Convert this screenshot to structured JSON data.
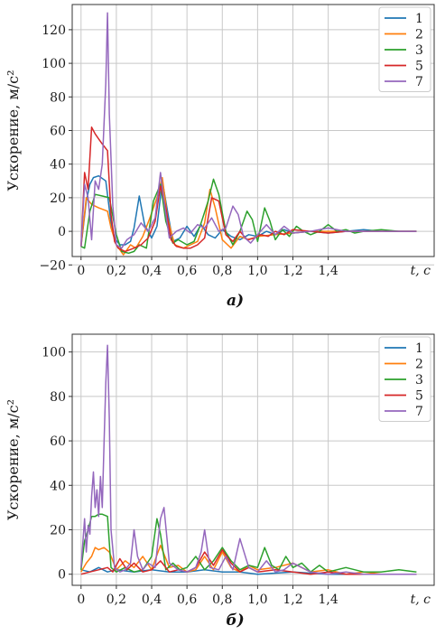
{
  "chart_data": [
    {
      "type": "line",
      "caption": "а)",
      "ylabel": "Ускорение, м/с²",
      "xlabel": "t, c",
      "xlim": [
        -0.05,
        2.0
      ],
      "ylim": [
        -15,
        135
      ],
      "xticks": [
        "0",
        "0,2",
        "0,4",
        "0,6",
        "0,8",
        "1,0",
        "1,2",
        "1,4"
      ],
      "yticks": [
        "−20",
        "0",
        "20",
        "40",
        "60",
        "80",
        "100",
        "120"
      ],
      "grid": true,
      "legend_position": "top-right",
      "series": [
        {
          "name": "1",
          "color": "#1f77b4",
          "x": [
            0,
            0.03,
            0.05,
            0.07,
            0.1,
            0.14,
            0.17,
            0.19,
            0.22,
            0.25,
            0.28,
            0.3,
            0.33,
            0.36,
            0.4,
            0.43,
            0.46,
            0.49,
            0.52,
            0.56,
            0.6,
            0.64,
            0.68,
            0.72,
            0.76,
            0.8,
            0.85,
            0.9,
            0.95,
            1.0,
            1.05,
            1.1,
            1.15,
            1.2,
            1.3,
            1.4,
            1.5,
            1.6,
            1.7,
            1.8,
            1.9
          ],
          "y": [
            -9,
            18,
            28,
            32,
            33,
            30,
            5,
            -4,
            -8,
            -8,
            -6,
            2,
            21,
            4,
            -4,
            3,
            30,
            12,
            -6,
            -4,
            3,
            -3,
            4,
            -2,
            -4,
            1,
            -3,
            -5,
            -2,
            -3,
            0,
            -2,
            1,
            -1,
            0,
            -1,
            0,
            1,
            0,
            0,
            0
          ]
        },
        {
          "name": "2",
          "color": "#ff7f0e",
          "x": [
            0,
            0.03,
            0.06,
            0.1,
            0.15,
            0.17,
            0.2,
            0.24,
            0.28,
            0.31,
            0.35,
            0.39,
            0.43,
            0.46,
            0.49,
            0.53,
            0.58,
            0.62,
            0.66,
            0.7,
            0.73,
            0.76,
            0.8,
            0.85,
            0.9,
            0.95,
            1.0,
            1.1,
            1.2,
            1.3,
            1.4,
            1.5,
            1.6,
            1.7,
            1.8,
            1.9
          ],
          "y": [
            -9,
            20,
            16,
            14,
            12,
            2,
            -8,
            -14,
            -8,
            -10,
            -3,
            8,
            20,
            32,
            8,
            -8,
            -10,
            -8,
            -6,
            5,
            25,
            14,
            -5,
            -10,
            -3,
            -5,
            -3,
            -2,
            -1,
            0,
            0,
            0,
            0,
            0,
            0,
            0
          ]
        },
        {
          "name": "3",
          "color": "#2ca02c",
          "x": [
            0,
            0.02,
            0.05,
            0.08,
            0.12,
            0.16,
            0.2,
            0.23,
            0.27,
            0.3,
            0.33,
            0.37,
            0.41,
            0.45,
            0.48,
            0.52,
            0.55,
            0.6,
            0.64,
            0.68,
            0.72,
            0.75,
            0.78,
            0.82,
            0.86,
            0.9,
            0.94,
            0.97,
            1.0,
            1.04,
            1.07,
            1.1,
            1.14,
            1.18,
            1.22,
            1.26,
            1.3,
            1.35,
            1.4,
            1.45,
            1.5,
            1.55,
            1.6,
            1.7,
            1.8,
            1.9
          ],
          "y": [
            -9,
            -10,
            12,
            22,
            21,
            20,
            -2,
            -12,
            -13,
            -12,
            -8,
            -10,
            18,
            28,
            6,
            -7,
            -5,
            -8,
            -6,
            5,
            18,
            31,
            22,
            0,
            -8,
            0,
            12,
            7,
            -6,
            14,
            6,
            -5,
            1,
            -3,
            3,
            0,
            -2,
            0,
            4,
            0,
            1,
            -1,
            0,
            1,
            0,
            0
          ]
        },
        {
          "name": "5",
          "color": "#d62728",
          "x": [
            0,
            0.02,
            0.04,
            0.06,
            0.08,
            0.1,
            0.12,
            0.15,
            0.17,
            0.19,
            0.21,
            0.25,
            0.3,
            0.34,
            0.38,
            0.42,
            0.45,
            0.48,
            0.51,
            0.54,
            0.58,
            0.62,
            0.66,
            0.7,
            0.74,
            0.78,
            0.82,
            0.86,
            0.9,
            0.94,
            0.98,
            1.02,
            1.06,
            1.1,
            1.15,
            1.2,
            1.3,
            1.4,
            1.5,
            1.6,
            1.7,
            1.8,
            1.9
          ],
          "y": [
            -9,
            35,
            25,
            62,
            58,
            55,
            52,
            48,
            10,
            -6,
            -10,
            -12,
            -10,
            -8,
            -4,
            6,
            27,
            14,
            -5,
            -9,
            -10,
            -10,
            -8,
            -4,
            20,
            18,
            -2,
            -6,
            0,
            -5,
            -4,
            -2,
            -3,
            0,
            -2,
            1,
            0,
            -1,
            0,
            0,
            0,
            0,
            0
          ]
        },
        {
          "name": "7",
          "color": "#9467bd",
          "x": [
            0,
            0.02,
            0.04,
            0.06,
            0.08,
            0.1,
            0.12,
            0.14,
            0.15,
            0.16,
            0.18,
            0.2,
            0.23,
            0.26,
            0.3,
            0.34,
            0.38,
            0.42,
            0.45,
            0.47,
            0.5,
            0.54,
            0.58,
            0.62,
            0.66,
            0.7,
            0.74,
            0.78,
            0.82,
            0.86,
            0.89,
            0.92,
            0.96,
            1.0,
            1.05,
            1.1,
            1.15,
            1.2,
            1.3,
            1.4,
            1.5,
            1.6,
            1.7,
            1.8,
            1.9
          ],
          "y": [
            -9,
            28,
            20,
            -5,
            30,
            25,
            40,
            88,
            130,
            70,
            15,
            -8,
            -10,
            -5,
            -2,
            5,
            0,
            8,
            35,
            18,
            -4,
            0,
            2,
            -1,
            4,
            2,
            8,
            0,
            2,
            15,
            10,
            -3,
            -7,
            -2,
            4,
            -2,
            3,
            -1,
            0,
            2,
            0,
            0,
            0,
            0,
            0
          ]
        }
      ]
    },
    {
      "type": "line",
      "caption": "б)",
      "ylabel": "Ускорение, м/с²",
      "xlabel": "t, c",
      "xlim": [
        -0.05,
        2.0
      ],
      "ylim": [
        -5,
        108
      ],
      "xticks": [
        "0",
        "0,2",
        "0,4",
        "0,6",
        "0,8",
        "1,0",
        "1,2",
        "1,4"
      ],
      "yticks": [
        "0",
        "20",
        "40",
        "60",
        "80",
        "100"
      ],
      "grid": true,
      "legend_position": "top-right",
      "series": [
        {
          "name": "1",
          "color": "#1f77b4",
          "x": [
            0,
            0.05,
            0.1,
            0.15,
            0.2,
            0.3,
            0.4,
            0.5,
            0.6,
            0.7,
            0.8,
            0.9,
            1.0,
            1.2,
            1.4,
            1.6,
            1.8,
            1.9
          ],
          "y": [
            2,
            1,
            3,
            1,
            2,
            1,
            2,
            1,
            1,
            2,
            1,
            1,
            0,
            1,
            0,
            0,
            0,
            0
          ]
        },
        {
          "name": "2",
          "color": "#ff7f0e",
          "x": [
            0,
            0.03,
            0.06,
            0.08,
            0.1,
            0.13,
            0.16,
            0.2,
            0.25,
            0.3,
            0.35,
            0.4,
            0.45,
            0.5,
            0.55,
            0.6,
            0.65,
            0.7,
            0.75,
            0.8,
            0.85,
            0.9,
            0.95,
            1.0,
            1.1,
            1.2,
            1.3,
            1.4,
            1.5,
            1.6,
            1.7,
            1.8,
            1.9
          ],
          "y": [
            1,
            5,
            8,
            12,
            11,
            12,
            10,
            2,
            6,
            3,
            8,
            2,
            13,
            3,
            4,
            1,
            2,
            8,
            2,
            10,
            3,
            1,
            4,
            2,
            3,
            5,
            1,
            2,
            0,
            1,
            0,
            0,
            0
          ]
        },
        {
          "name": "3",
          "color": "#2ca02c",
          "x": [
            0,
            0.02,
            0.04,
            0.06,
            0.08,
            0.1,
            0.12,
            0.15,
            0.17,
            0.2,
            0.25,
            0.3,
            0.35,
            0.4,
            0.43,
            0.45,
            0.48,
            0.52,
            0.56,
            0.6,
            0.65,
            0.7,
            0.75,
            0.8,
            0.85,
            0.9,
            0.95,
            1.0,
            1.04,
            1.08,
            1.12,
            1.16,
            1.2,
            1.25,
            1.3,
            1.35,
            1.4,
            1.5,
            1.6,
            1.7,
            1.8,
            1.9
          ],
          "y": [
            2,
            15,
            20,
            26,
            26,
            27,
            27,
            26,
            3,
            1,
            3,
            1,
            2,
            8,
            25,
            18,
            2,
            5,
            2,
            3,
            8,
            2,
            6,
            12,
            6,
            2,
            4,
            3,
            12,
            4,
            2,
            8,
            3,
            5,
            1,
            4,
            1,
            3,
            1,
            1,
            2,
            1
          ]
        },
        {
          "name": "5",
          "color": "#d62728",
          "x": [
            0,
            0.05,
            0.1,
            0.15,
            0.18,
            0.22,
            0.26,
            0.3,
            0.35,
            0.4,
            0.45,
            0.5,
            0.55,
            0.6,
            0.65,
            0.7,
            0.75,
            0.8,
            0.85,
            0.9,
            0.95,
            1.0,
            1.1,
            1.2,
            1.3,
            1.4,
            1.5,
            1.6,
            1.7,
            1.8,
            1.9
          ],
          "y": [
            0,
            1,
            2,
            3,
            1,
            7,
            2,
            5,
            1,
            2,
            6,
            1,
            2,
            1,
            3,
            10,
            4,
            11,
            5,
            1,
            3,
            1,
            2,
            1,
            0,
            1,
            0,
            0,
            0,
            0,
            0
          ]
        },
        {
          "name": "7",
          "color": "#9467bd",
          "x": [
            0,
            0.02,
            0.03,
            0.04,
            0.05,
            0.06,
            0.07,
            0.08,
            0.09,
            0.1,
            0.11,
            0.12,
            0.13,
            0.14,
            0.15,
            0.16,
            0.17,
            0.19,
            0.22,
            0.25,
            0.28,
            0.3,
            0.32,
            0.35,
            0.38,
            0.42,
            0.45,
            0.47,
            0.5,
            0.55,
            0.6,
            0.65,
            0.68,
            0.7,
            0.73,
            0.78,
            0.82,
            0.86,
            0.9,
            0.95,
            1.0,
            1.05,
            1.1,
            1.15,
            1.2,
            1.3,
            1.4,
            1.5,
            1.6,
            1.7,
            1.8,
            1.9
          ],
          "y": [
            3,
            25,
            10,
            22,
            18,
            35,
            46,
            30,
            38,
            26,
            44,
            30,
            58,
            86,
            103,
            70,
            20,
            3,
            1,
            2,
            5,
            20,
            8,
            2,
            5,
            3,
            25,
            30,
            5,
            2,
            1,
            3,
            10,
            20,
            3,
            2,
            8,
            2,
            16,
            3,
            1,
            6,
            1,
            2,
            5,
            1,
            0,
            1,
            0,
            0,
            0,
            0
          ]
        }
      ]
    }
  ]
}
